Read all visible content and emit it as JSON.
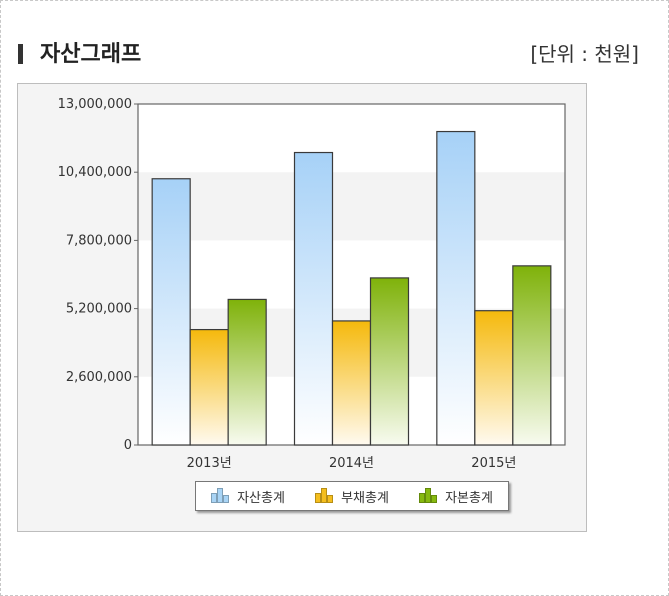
{
  "header": {
    "title": "자산그래프",
    "unit": "[단위 : 천원]"
  },
  "chart_data": {
    "type": "bar",
    "categories": [
      "2013년",
      "2014년",
      "2015년"
    ],
    "series": [
      {
        "name": "자산총계",
        "values": [
          10150000,
          11150000,
          11950000
        ],
        "color": "#a9d4f5"
      },
      {
        "name": "부채총계",
        "values": [
          4400000,
          4730000,
          5120000
        ],
        "color": "#f4be1e"
      },
      {
        "name": "자본총계",
        "values": [
          5550000,
          6370000,
          6830000
        ],
        "color": "#86b90f"
      }
    ],
    "ylim": [
      0,
      13000000
    ],
    "yticks": [
      "0",
      "2,600,000",
      "5,200,000",
      "7,800,000",
      "10,400,000",
      "13,000,000"
    ],
    "legend_position": "bottom",
    "grid": "alternating bands"
  }
}
